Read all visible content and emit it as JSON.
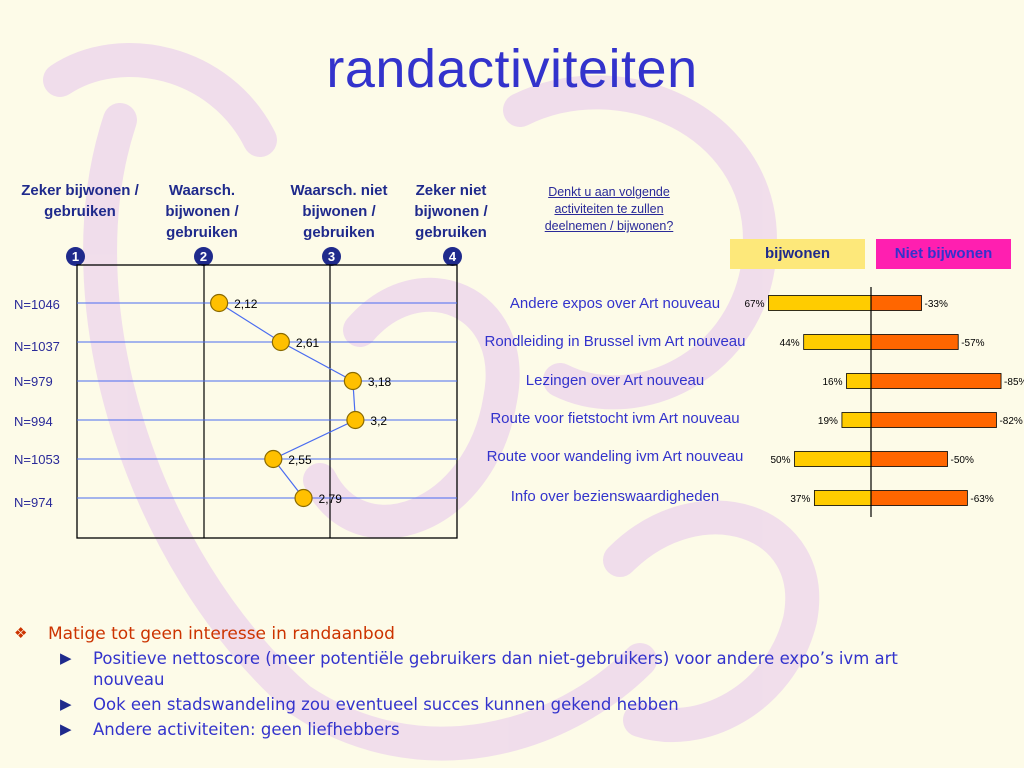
{
  "title": "randactiviteiten",
  "columns": [
    {
      "label": "Zeker bijwonen / gebruiken",
      "number": "1"
    },
    {
      "label": "Waarsch. bijwonen / gebruiken",
      "number": "2"
    },
    {
      "label": "Waarsch. niet bijwonen / gebruiken",
      "number": "3"
    },
    {
      "label": "Zeker niet bijwonen / gebruiken",
      "number": "4"
    }
  ],
  "question": "Denkt u aan volgende activiteiten te zullen deelnemen / bijwonen?",
  "legend": {
    "yes": "bijwonen",
    "no": "Niet bijwonen"
  },
  "colors": {
    "title": "#3333cc",
    "dot_fill": "#ffc000",
    "dot_stroke": "#8a6a00",
    "line": "#4a6cf0",
    "bar_yes": "#ffcc00",
    "bar_no": "#ff6600",
    "legend_yes_bg": "#fde87a",
    "legend_no_bg": "#ff1fb0"
  },
  "chart_data": [
    {
      "type": "line",
      "xlim": [
        1,
        4
      ],
      "rows": [
        {
          "n": "N=1046",
          "value": 2.12,
          "label": "2,12"
        },
        {
          "n": "N=1037",
          "value": 2.61,
          "label": "2,61"
        },
        {
          "n": "N=979",
          "value": 3.18,
          "label": "3,18"
        },
        {
          "n": "N=994",
          "value": 3.2,
          "label": "3,2"
        },
        {
          "n": "N=1053",
          "value": 2.55,
          "label": "2,55"
        },
        {
          "n": "N=974",
          "value": 2.79,
          "label": "2,79"
        }
      ]
    },
    {
      "type": "bar",
      "orientation": "horizontal-diverging",
      "categories": [
        "Andere expos over Art nouveau",
        "Rondleiding in Brussel ivm Art nouveau",
        "Lezingen over Art nouveau",
        "Route voor fietstocht ivm Art nouveau",
        "Route voor wandeling ivm Art nouveau",
        "Info over bezienswaardigheden"
      ],
      "series": [
        {
          "name": "bijwonen",
          "values": [
            67,
            44,
            16,
            19,
            50,
            37
          ],
          "labels": [
            "67%",
            "44%",
            "16%",
            "19%",
            "50%",
            "37%"
          ]
        },
        {
          "name": "Niet bijwonen",
          "values": [
            -33,
            -57,
            -85,
            -82,
            -50,
            -63
          ],
          "labels": [
            "-33%",
            "-57%",
            "-85%",
            "-82%",
            "-50%",
            "-63%"
          ]
        }
      ]
    }
  ],
  "bullets": {
    "main": "Matige tot geen interesse in randaanbod",
    "subs": [
      "Positieve nettoscore (meer potentiële gebruikers dan niet-gebruikers) voor andere expo’s ivm art nouveau",
      "Ook een stadswandeling zou eventueel succes kunnen gekend hebben",
      "Andere activiteiten: geen liefhebbers"
    ]
  }
}
